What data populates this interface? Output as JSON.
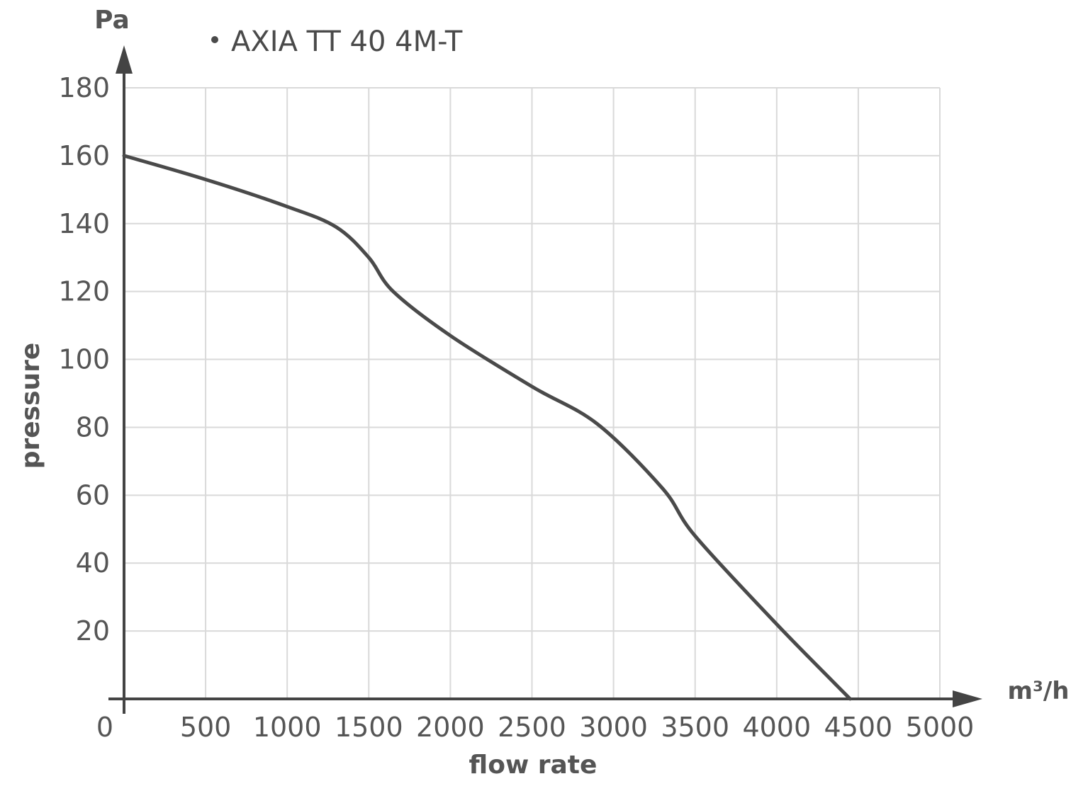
{
  "chart_data": {
    "type": "line",
    "title": "",
    "xlabel": "flow rate",
    "ylabel": "pressure",
    "x_unit": "m³/h",
    "y_unit": "Pa",
    "xlim": [
      0,
      5000
    ],
    "ylim": [
      0,
      180
    ],
    "x_ticks": [
      "0",
      "500",
      "1000",
      "1500",
      "2000",
      "2500",
      "3000",
      "3500",
      "4000",
      "4500",
      "5000"
    ],
    "y_ticks": [
      "20",
      "40",
      "60",
      "80",
      "100",
      "120",
      "140",
      "160",
      "180"
    ],
    "grid": true,
    "legend_position": "top-left",
    "series": [
      {
        "name": "AXIA TT 40 4M-T",
        "color": "#4a4a4a",
        "x": [
          0,
          500,
          1000,
          1300,
          1500,
          1650,
          2000,
          2500,
          2900,
          3300,
          3500,
          4000,
          4450
        ],
        "y": [
          160,
          153,
          145,
          139,
          130,
          120,
          107,
          92,
          81,
          62,
          48,
          22,
          0
        ]
      }
    ]
  },
  "colors": {
    "axis": "#444444",
    "grid": "#d9d9d9",
    "text": "#555555"
  }
}
